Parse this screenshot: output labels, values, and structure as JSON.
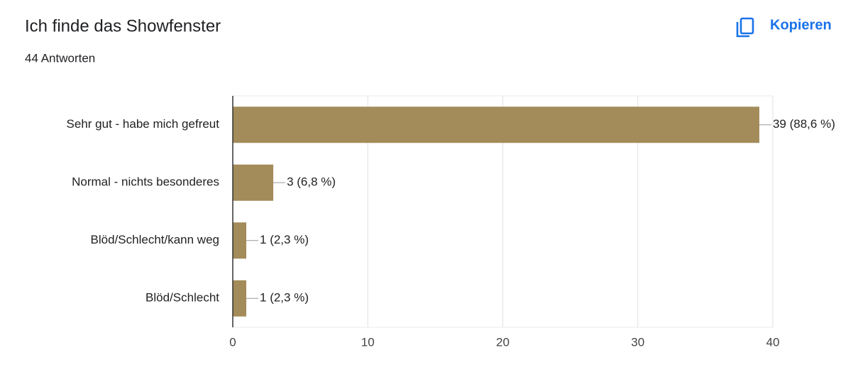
{
  "copy_button": "Kopieren",
  "chart_data": {
    "type": "barh",
    "title": "Ich finde das Showfenster",
    "subtitle": "44 Antworten",
    "categories": [
      "Sehr gut - habe mich gefreut",
      "Normal - nichts besonderes",
      "Blöd/Schlecht/kann weg",
      "Blöd/Schlecht"
    ],
    "values": [
      39,
      3,
      1,
      1
    ],
    "value_labels": [
      "39 (88,6 %)",
      "3 (6,8 %)",
      "1 (2,3 %)",
      "1 (2,3 %)"
    ],
    "color": "#a38b5a",
    "xlim": [
      0,
      40
    ],
    "xticks": [
      0,
      10,
      20,
      30,
      40
    ],
    "grid": true
  }
}
